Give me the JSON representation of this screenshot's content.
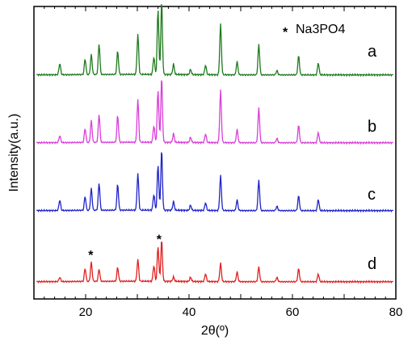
{
  "chart_data": {
    "type": "line",
    "title": "",
    "xlabel": "2θ(º)",
    "ylabel": "Intensity(a.u.)",
    "xlim": [
      10,
      80
    ],
    "xticks": [
      20,
      40,
      60,
      80
    ],
    "xtick_labels": [
      "20",
      "40",
      "60",
      "80"
    ],
    "yticks_shown": false,
    "grid": false,
    "legend": {
      "symbol": "*",
      "text": "Na3PO4",
      "placement": "top-right"
    },
    "annotations": [
      {
        "text": "*",
        "x": 21.0,
        "series": "a"
      },
      {
        "text": "*",
        "x": 34.2,
        "series": "a"
      }
    ],
    "peaks_2theta": [
      15.0,
      19.9,
      21.1,
      22.6,
      26.2,
      30.1,
      33.2,
      34.0,
      34.7,
      37.0,
      40.3,
      43.2,
      46.1,
      49.3,
      53.5,
      57.0,
      61.2,
      65.0
    ],
    "series": [
      {
        "name": "a",
        "color": "#e02020",
        "offset": 3,
        "peak_intensity": [
          0.05,
          0.15,
          0.22,
          0.14,
          0.16,
          0.25,
          0.18,
          0.4,
          0.48,
          0.05,
          0.05,
          0.09,
          0.21,
          0.11,
          0.17,
          0.05,
          0.15,
          0.09
        ]
      },
      {
        "name": "b",
        "color": "#1f24c7",
        "offset": 2,
        "peak_intensity": [
          0.12,
          0.16,
          0.25,
          0.31,
          0.3,
          0.42,
          0.18,
          0.52,
          0.7,
          0.1,
          0.06,
          0.09,
          0.4,
          0.12,
          0.35,
          0.05,
          0.17,
          0.13
        ]
      },
      {
        "name": "c",
        "color": "#d93fd9",
        "offset": 1,
        "peak_intensity": [
          0.08,
          0.16,
          0.25,
          0.32,
          0.31,
          0.49,
          0.19,
          0.6,
          0.75,
          0.1,
          0.06,
          0.1,
          0.6,
          0.15,
          0.4,
          0.05,
          0.2,
          0.12
        ]
      },
      {
        "name": "d",
        "color": "#1e7a1e",
        "offset": 0,
        "peak_intensity": [
          0.13,
          0.18,
          0.23,
          0.35,
          0.27,
          0.46,
          0.2,
          0.75,
          0.85,
          0.12,
          0.06,
          0.11,
          0.58,
          0.15,
          0.35,
          0.05,
          0.22,
          0.14
        ]
      }
    ]
  }
}
